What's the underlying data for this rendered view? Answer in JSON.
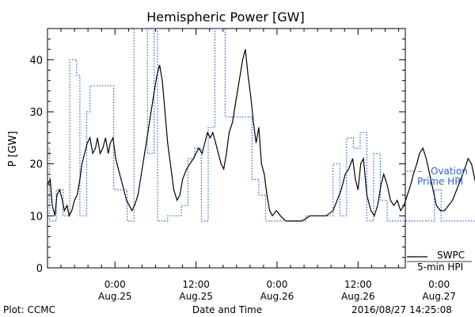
{
  "chart_data": {
    "type": "line",
    "title": "Hemispheric Power [GW]",
    "ylabel": "P [GW]",
    "xlabel": "Date and Time",
    "ylim": [
      0,
      46
    ],
    "xlim_hours": [
      -10,
      43
    ],
    "yticks": [
      0,
      10,
      20,
      30,
      40
    ],
    "xticks": [
      {
        "hour": 0,
        "time": "0:00",
        "date": "Aug.25"
      },
      {
        "hour": 12,
        "time": "12:00",
        "date": "Aug.25"
      },
      {
        "hour": 24,
        "time": "0:00",
        "date": "Aug.26"
      },
      {
        "hour": 36,
        "time": "12:00",
        "date": "Aug.26"
      },
      {
        "hour": 48,
        "time": "0:00",
        "date": "Aug.27"
      },
      {
        "hour": 60,
        "time": "12:00",
        "date": "Aug.27"
      }
    ],
    "series": [
      {
        "name": "SWPC 5-min HPI",
        "legend_line1": "SWPC",
        "legend_line2": "5-min HPI",
        "color": "#000000",
        "style": "solid",
        "points": [
          [
            -10,
            16
          ],
          [
            -9.6,
            17
          ],
          [
            -9.3,
            12
          ],
          [
            -8.9,
            10
          ],
          [
            -8.6,
            14
          ],
          [
            -8.2,
            15
          ],
          [
            -7.8,
            13
          ],
          [
            -7.5,
            11
          ],
          [
            -7.1,
            12
          ],
          [
            -6.8,
            10
          ],
          [
            -6.4,
            11
          ],
          [
            -6.0,
            13
          ],
          [
            -5.6,
            14
          ],
          [
            -5.2,
            17
          ],
          [
            -4.9,
            20
          ],
          [
            -4.5,
            22
          ],
          [
            -4.1,
            24
          ],
          [
            -3.7,
            25
          ],
          [
            -3.3,
            22
          ],
          [
            -2.9,
            23
          ],
          [
            -2.6,
            25
          ],
          [
            -2.2,
            22
          ],
          [
            -1.8,
            23
          ],
          [
            -1.4,
            25
          ],
          [
            -1.0,
            22
          ],
          [
            -0.7,
            24
          ],
          [
            -0.3,
            25
          ],
          [
            0.1,
            21
          ],
          [
            0.5,
            19
          ],
          [
            0.9,
            17
          ],
          [
            1.3,
            15
          ],
          [
            1.7,
            13
          ],
          [
            2.1,
            12
          ],
          [
            2.5,
            11
          ],
          [
            2.9,
            12
          ],
          [
            3.4,
            14
          ],
          [
            3.9,
            18
          ],
          [
            4.5,
            23
          ],
          [
            5.1,
            28
          ],
          [
            5.7,
            33
          ],
          [
            6.2,
            37
          ],
          [
            6.6,
            39
          ],
          [
            7.0,
            36
          ],
          [
            7.4,
            30
          ],
          [
            7.8,
            24
          ],
          [
            8.3,
            19
          ],
          [
            8.7,
            15
          ],
          [
            9.2,
            13
          ],
          [
            9.6,
            14
          ],
          [
            10.0,
            17
          ],
          [
            10.6,
            19
          ],
          [
            11.1,
            20
          ],
          [
            11.6,
            21
          ],
          [
            12.0,
            22
          ],
          [
            12.4,
            23
          ],
          [
            12.9,
            22
          ],
          [
            13.3,
            24
          ],
          [
            13.7,
            26
          ],
          [
            14.1,
            25
          ],
          [
            14.5,
            26
          ],
          [
            14.9,
            24
          ],
          [
            15.3,
            22
          ],
          [
            15.7,
            20
          ],
          [
            16.1,
            19
          ],
          [
            16.5,
            22
          ],
          [
            16.9,
            26
          ],
          [
            17.4,
            28
          ],
          [
            17.9,
            32
          ],
          [
            18.4,
            36
          ],
          [
            18.9,
            40
          ],
          [
            19.3,
            42
          ],
          [
            19.7,
            37
          ],
          [
            20.1,
            33
          ],
          [
            20.5,
            28
          ],
          [
            20.9,
            24
          ],
          [
            21.3,
            27
          ],
          [
            21.7,
            20
          ],
          [
            22.1,
            18
          ],
          [
            22.5,
            14
          ],
          [
            22.9,
            11
          ],
          [
            23.3,
            10
          ],
          [
            23.9,
            11
          ],
          [
            24.5,
            10
          ],
          [
            25.3,
            9
          ],
          [
            26.5,
            9
          ],
          [
            27.7,
            9
          ],
          [
            28.9,
            10
          ],
          [
            30.1,
            10
          ],
          [
            31.3,
            10
          ],
          [
            32.3,
            11
          ],
          [
            32.9,
            13
          ],
          [
            33.5,
            15
          ],
          [
            34.1,
            18
          ],
          [
            34.6,
            19
          ],
          [
            35.2,
            21
          ],
          [
            35.6,
            17
          ],
          [
            36.0,
            15
          ],
          [
            36.4,
            20
          ],
          [
            36.8,
            21
          ],
          [
            37.3,
            14
          ],
          [
            37.9,
            11
          ],
          [
            38.4,
            10
          ],
          [
            38.9,
            12
          ],
          [
            39.4,
            16
          ],
          [
            39.8,
            18
          ],
          [
            40.3,
            16
          ],
          [
            40.8,
            13
          ],
          [
            41.3,
            12
          ],
          [
            41.8,
            13
          ],
          [
            42.3,
            11
          ],
          [
            42.8,
            12
          ],
          [
            43.3,
            14
          ],
          [
            43.8,
            16
          ],
          [
            44.2,
            18
          ],
          [
            44.7,
            20
          ],
          [
            45.1,
            22
          ],
          [
            45.6,
            23
          ],
          [
            46.1,
            21
          ],
          [
            46.6,
            18
          ],
          [
            47.1,
            15
          ],
          [
            47.6,
            12
          ],
          [
            48.2,
            11
          ],
          [
            48.8,
            11
          ],
          [
            49.4,
            12
          ],
          [
            50.0,
            13
          ],
          [
            50.6,
            15
          ],
          [
            51.2,
            17
          ],
          [
            51.8,
            19
          ],
          [
            52.3,
            21
          ],
          [
            52.8,
            20
          ],
          [
            53.3,
            17
          ],
          [
            53.8,
            14
          ],
          [
            54.3,
            12
          ],
          [
            54.8,
            11
          ],
          [
            55.3,
            11
          ],
          [
            55.8,
            12
          ],
          [
            56.3,
            14
          ],
          [
            56.8,
            17
          ],
          [
            57.3,
            20
          ],
          [
            57.9,
            23
          ],
          [
            58.5,
            21
          ],
          [
            59.0,
            18
          ],
          [
            59.5,
            13
          ],
          [
            59.9,
            11
          ],
          [
            60.3,
            12
          ]
        ]
      },
      {
        "name": "Ovation Prime HPI",
        "legend_line1": "Ovation",
        "legend_line2": "Prime HPI",
        "color": "#2a64c8",
        "style": "dotted",
        "points": [
          [
            -10,
            23
          ],
          [
            -9.7,
            23
          ],
          [
            -9.7,
            9
          ],
          [
            -8.7,
            9
          ],
          [
            -8.7,
            15
          ],
          [
            -7.7,
            15
          ],
          [
            -7.7,
            10
          ],
          [
            -6.7,
            10
          ],
          [
            -6.7,
            40
          ],
          [
            -5.7,
            40
          ],
          [
            -5.7,
            37
          ],
          [
            -5.2,
            37
          ],
          [
            -5.2,
            10
          ],
          [
            -4.2,
            10
          ],
          [
            -4.2,
            30
          ],
          [
            -3.7,
            30
          ],
          [
            -3.7,
            35
          ],
          [
            -0.2,
            35
          ],
          [
            -0.2,
            15
          ],
          [
            0.8,
            15
          ],
          [
            0.8,
            15
          ],
          [
            1.8,
            15
          ],
          [
            1.8,
            9
          ],
          [
            2.8,
            9
          ],
          [
            2.8,
            46
          ],
          [
            4.8,
            46
          ],
          [
            4.8,
            22
          ],
          [
            5.8,
            22
          ],
          [
            5.8,
            46
          ],
          [
            6.3,
            46
          ],
          [
            6.3,
            9
          ],
          [
            7.8,
            9
          ],
          [
            7.8,
            10
          ],
          [
            9.8,
            10
          ],
          [
            9.8,
            12
          ],
          [
            10.8,
            12
          ],
          [
            10.8,
            21
          ],
          [
            11.8,
            21
          ],
          [
            11.8,
            23
          ],
          [
            12.8,
            23
          ],
          [
            12.8,
            9
          ],
          [
            13.8,
            9
          ],
          [
            13.8,
            27
          ],
          [
            14.8,
            27
          ],
          [
            14.8,
            46
          ],
          [
            16.3,
            46
          ],
          [
            16.3,
            29
          ],
          [
            20.3,
            29
          ],
          [
            20.3,
            17
          ],
          [
            21.3,
            17
          ],
          [
            21.3,
            14
          ],
          [
            22.3,
            14
          ],
          [
            22.3,
            9
          ],
          [
            28.3,
            9
          ],
          [
            28.3,
            10
          ],
          [
            32.3,
            10
          ],
          [
            32.3,
            20
          ],
          [
            33.3,
            20
          ],
          [
            33.3,
            10
          ],
          [
            34.3,
            10
          ],
          [
            34.3,
            25
          ],
          [
            35.3,
            25
          ],
          [
            35.3,
            23
          ],
          [
            36.3,
            23
          ],
          [
            36.3,
            26
          ],
          [
            37.3,
            26
          ],
          [
            37.3,
            9
          ],
          [
            38.3,
            9
          ],
          [
            38.3,
            22
          ],
          [
            39.3,
            22
          ],
          [
            39.3,
            13
          ],
          [
            40.3,
            13
          ],
          [
            40.3,
            9
          ],
          [
            47.3,
            9
          ],
          [
            47.3,
            15
          ],
          [
            48.3,
            15
          ],
          [
            48.3,
            9
          ],
          [
            54.3,
            9
          ],
          [
            54.3,
            15
          ],
          [
            55.3,
            15
          ],
          [
            55.3,
            9
          ],
          [
            56.3,
            9
          ],
          [
            56.3,
            21
          ],
          [
            57.3,
            21
          ],
          [
            57.3,
            9
          ],
          [
            59.3,
            9
          ],
          [
            59.3,
            23
          ],
          [
            60.3,
            23
          ],
          [
            60.3,
            16
          ],
          [
            60.8,
            16
          ]
        ]
      }
    ]
  },
  "footer": {
    "left": "Plot: CCMC",
    "right": "2016/08/27 14:25:08"
  }
}
